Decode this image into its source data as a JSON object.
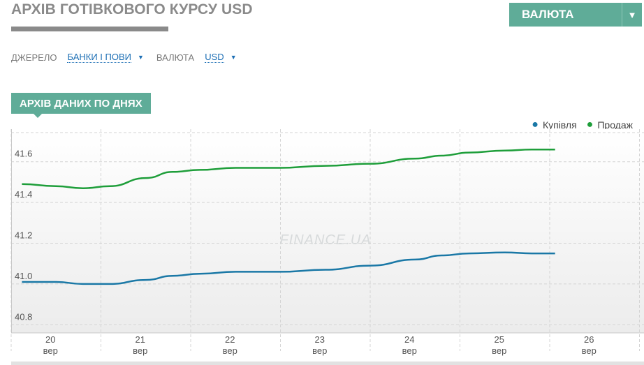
{
  "header": {
    "title": "АРХІВ ГОТІВКОВОГО КУРСУ USD",
    "currency_button": "ВАЛЮТА",
    "currency_caret": "▼"
  },
  "filters": {
    "source_label": "ДЖЕРЕЛО",
    "source_value": "БАНКИ І ПОВИ",
    "currency_label": "ВАЛЮТА",
    "currency_value": "USD",
    "caret": "▼"
  },
  "section": {
    "title": "АРХІВ ДАНИХ ПО ДНЯХ"
  },
  "watermark": "FINANCE.UA",
  "colors": {
    "accent": "#5fac98",
    "buy": "#1a78a6",
    "sell": "#1e9e3a",
    "link": "#1d6fb5"
  },
  "chart_data": {
    "type": "line",
    "categories": [
      "20",
      "21",
      "22",
      "23",
      "24",
      "25",
      "26"
    ],
    "category_sublabel": "вер",
    "y_ticks": [
      "41.6",
      "41.4",
      "41.2",
      "41.0",
      "40.8"
    ],
    "ylim": [
      40.76,
      41.76
    ],
    "grid": true,
    "legend_position": "top-right",
    "series": [
      {
        "name": "Купівля",
        "color": "#1a78a6",
        "x": [
          19.62,
          20.0,
          20.3,
          20.6,
          21.0,
          21.3,
          21.6,
          22.0,
          22.5,
          23.0,
          23.5,
          24.0,
          24.3,
          24.6,
          25.0,
          25.3,
          25.56
        ],
        "y": [
          41.01,
          41.01,
          41.0,
          41.0,
          41.02,
          41.04,
          41.05,
          41.06,
          41.06,
          41.07,
          41.09,
          41.12,
          41.14,
          41.15,
          41.155,
          41.15,
          41.15
        ]
      },
      {
        "name": "Продаж",
        "color": "#1e9e3a",
        "x": [
          19.62,
          20.0,
          20.3,
          20.6,
          21.0,
          21.3,
          21.6,
          22.0,
          22.5,
          23.0,
          23.5,
          24.0,
          24.3,
          24.6,
          25.0,
          25.3,
          25.56
        ],
        "y": [
          41.49,
          41.48,
          41.47,
          41.48,
          41.52,
          41.55,
          41.56,
          41.57,
          41.57,
          41.58,
          41.59,
          41.615,
          41.63,
          41.645,
          41.655,
          41.66,
          41.66
        ]
      }
    ]
  }
}
